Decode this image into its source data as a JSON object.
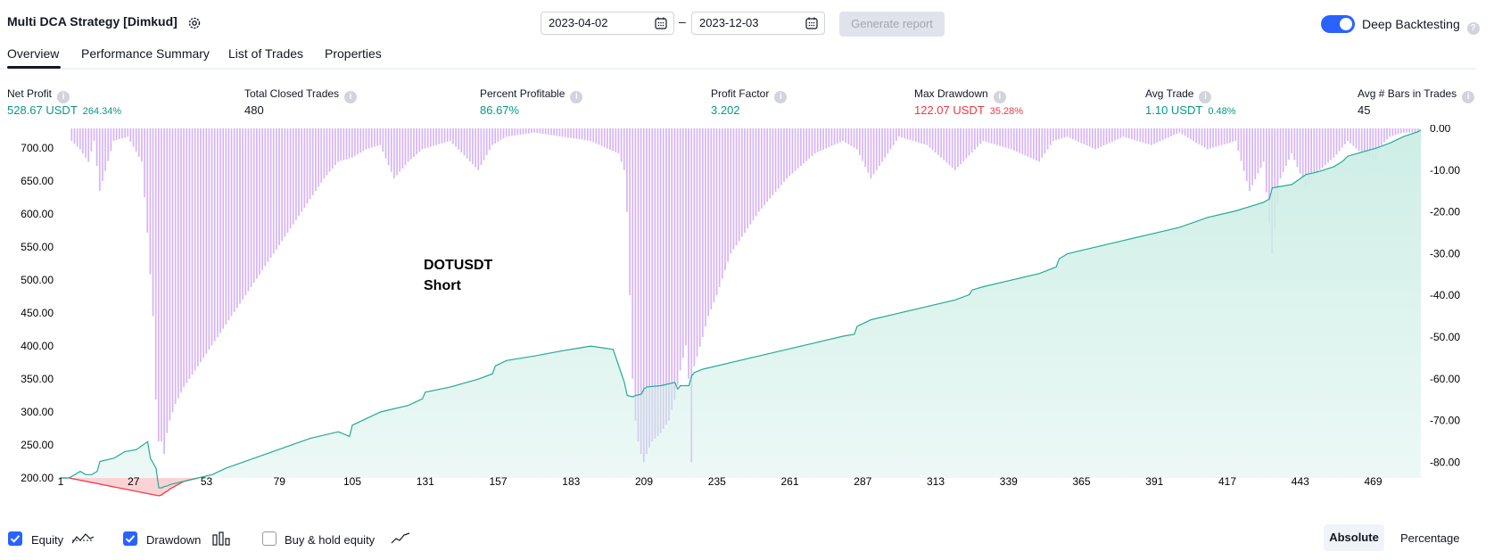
{
  "header": {
    "title": "Multi DCA Strategy [Dimkud]",
    "date_from": "2023-04-02",
    "date_to": "2023-12-03",
    "date_separator": "–",
    "generate_label": "Generate report",
    "deep_backtesting_label": "Deep Backtesting",
    "deep_backtesting_on": true
  },
  "tabs": [
    {
      "label": "Overview",
      "active": true
    },
    {
      "label": "Performance Summary",
      "active": false
    },
    {
      "label": "List of Trades",
      "active": false
    },
    {
      "label": "Properties",
      "active": false
    }
  ],
  "stats": [
    {
      "label": "Net Profit",
      "value": "528.67 USDT",
      "pct": "264.34%",
      "color": "#089981"
    },
    {
      "label": "Total Closed Trades",
      "value": "480",
      "pct": "",
      "color": "#131722"
    },
    {
      "label": "Percent Profitable",
      "value": "86.67%",
      "pct": "",
      "color": "#089981"
    },
    {
      "label": "Profit Factor",
      "value": "3.202",
      "pct": "",
      "color": "#089981"
    },
    {
      "label": "Max Drawdown",
      "value": "122.07 USDT",
      "pct": "35.28%",
      "color": "#f23645"
    },
    {
      "label": "Avg Trade",
      "value": "1.10 USDT",
      "pct": "0.48%",
      "color": "#089981"
    },
    {
      "label": "Avg # Bars in Trades",
      "value": "45",
      "pct": "",
      "color": "#131722"
    }
  ],
  "chart_data": {
    "type": "area",
    "annotation": [
      "DOTUSDT",
      "Short"
    ],
    "x_ticks": [
      1,
      27,
      53,
      79,
      105,
      131,
      157,
      183,
      209,
      235,
      261,
      287,
      313,
      339,
      365,
      391,
      417,
      443,
      469
    ],
    "xlim": [
      1,
      486
    ],
    "left_axis": {
      "ticks": [
        "700.00",
        "650.00",
        "600.00",
        "550.00",
        "500.00",
        "450.00",
        "400.00",
        "350.00",
        "300.00",
        "250.00",
        "200.00"
      ],
      "ylim": [
        200,
        730
      ]
    },
    "right_axis": {
      "ticks": [
        "0.00",
        "-10.00",
        "-20.00",
        "-30.00",
        "-40.00",
        "-50.00",
        "-60.00",
        "-70.00",
        "-80.00"
      ],
      "ylim": [
        -80,
        0
      ]
    },
    "equity": {
      "name": "Equity",
      "x": [
        1,
        4,
        8,
        10,
        12,
        14,
        15,
        20,
        24,
        28,
        32,
        33,
        35,
        36,
        37,
        38,
        39,
        40,
        45,
        50,
        55,
        60,
        70,
        80,
        90,
        100,
        104,
        105,
        110,
        115,
        125,
        130,
        131,
        140,
        150,
        155,
        156,
        160,
        170,
        180,
        190,
        198,
        200,
        202,
        203,
        205,
        206,
        208,
        209,
        210,
        215,
        220,
        221,
        222,
        225,
        226,
        227,
        230,
        240,
        250,
        260,
        270,
        280,
        284,
        285,
        290,
        300,
        310,
        320,
        325,
        326,
        330,
        340,
        350,
        356,
        357,
        360,
        370,
        380,
        390,
        400,
        410,
        420,
        430,
        432,
        433,
        440,
        445,
        450,
        455,
        458,
        460,
        465,
        470,
        475,
        480,
        485,
        486
      ],
      "y": [
        200,
        200,
        210,
        205,
        205,
        210,
        225,
        230,
        240,
        243,
        255,
        230,
        215,
        185,
        185,
        187,
        188,
        190,
        195,
        200,
        205,
        215,
        230,
        245,
        260,
        270,
        263,
        280,
        290,
        300,
        310,
        320,
        330,
        338,
        350,
        358,
        370,
        378,
        385,
        393,
        400,
        395,
        370,
        345,
        325,
        323,
        325,
        327,
        335,
        338,
        340,
        345,
        335,
        340,
        340,
        355,
        360,
        365,
        375,
        385,
        395,
        405,
        415,
        418,
        430,
        440,
        450,
        460,
        470,
        478,
        485,
        490,
        500,
        510,
        520,
        532,
        540,
        550,
        560,
        570,
        580,
        595,
        605,
        618,
        623,
        640,
        645,
        660,
        665,
        672,
        680,
        688,
        694,
        700,
        708,
        718,
        725,
        728
      ]
    },
    "drawdown": {
      "name": "Drawdown",
      "x": [
        5,
        8,
        11,
        13,
        15,
        20,
        25,
        30,
        32,
        34,
        35,
        36,
        37,
        38,
        39,
        40,
        42,
        45,
        50,
        55,
        60,
        65,
        70,
        75,
        80,
        85,
        90,
        95,
        100,
        105,
        110,
        115,
        120,
        125,
        130,
        140,
        150,
        155,
        160,
        170,
        180,
        190,
        200,
        202,
        203,
        204,
        205,
        206,
        207,
        208,
        209,
        210,
        212,
        215,
        218,
        220,
        222,
        224,
        225,
        226,
        227,
        230,
        232,
        235,
        240,
        250,
        260,
        270,
        280,
        285,
        290,
        300,
        310,
        320,
        330,
        340,
        350,
        355,
        360,
        370,
        380,
        390,
        400,
        410,
        420,
        425,
        430,
        433,
        436,
        440,
        445,
        450,
        455,
        460,
        465,
        470,
        472,
        475,
        480,
        485
      ],
      "y": [
        -3,
        -5,
        -8,
        -3,
        -15,
        -3,
        -2,
        -8,
        -25,
        -45,
        -65,
        -75,
        -75,
        -78,
        -73,
        -70,
        -66,
        -62,
        -57,
        -52,
        -47,
        -42,
        -37,
        -32,
        -27,
        -22,
        -17,
        -12,
        -8,
        -7,
        -5,
        -4,
        -12,
        -8,
        -5,
        -3,
        -10,
        -4,
        -2,
        -1,
        -2,
        -3,
        -6,
        -10,
        -20,
        -40,
        -60,
        -70,
        -75,
        -78,
        -80,
        -78,
        -75,
        -73,
        -70,
        -65,
        -58,
        -52,
        -60,
        -80,
        -57,
        -50,
        -45,
        -40,
        -30,
        -20,
        -12,
        -6,
        -3,
        -5,
        -12,
        -2,
        -4,
        -10,
        -3,
        -5,
        -8,
        -3,
        -2,
        -5,
        -2,
        -4,
        -1,
        -5,
        -3,
        -15,
        -8,
        -30,
        -12,
        -6,
        -14,
        -10,
        -7,
        -3,
        -6,
        -8,
        -4,
        -2,
        -1,
        -1
      ]
    }
  },
  "footer": {
    "equity_label": "Equity",
    "equity_checked": true,
    "drawdown_label": "Drawdown",
    "drawdown_checked": true,
    "buyhold_label": "Buy & hold equity",
    "buyhold_checked": false,
    "absolute_label": "Absolute",
    "percentage_label": "Percentage"
  },
  "colors": {
    "equity_line": "#22ab94",
    "equity_fill": "#cdeee6",
    "equity_loss": "#f23645",
    "drawdown_bar": "#d7b5f4",
    "accent": "#2962ff"
  }
}
